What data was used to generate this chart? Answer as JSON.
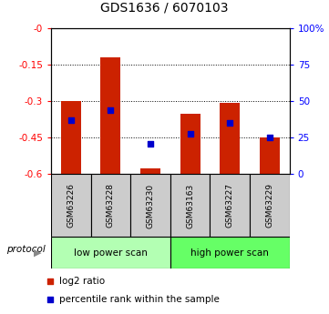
{
  "title": "GDS1636 / 6070103",
  "samples": [
    "GSM63226",
    "GSM63228",
    "GSM63230",
    "GSM63163",
    "GSM63227",
    "GSM63229"
  ],
  "log2_ratio": [
    -0.3,
    -0.12,
    -0.575,
    -0.35,
    -0.305,
    -0.45
  ],
  "percentile_rank": [
    37,
    44,
    21,
    28,
    35,
    25
  ],
  "bar_color": "#cc2200",
  "dot_color": "#0000cc",
  "ylim_left": [
    -0.6,
    0.0
  ],
  "ylim_right": [
    0,
    100
  ],
  "yticks_left": [
    0.0,
    -0.15,
    -0.3,
    -0.45,
    -0.6
  ],
  "yticks_right": [
    100,
    75,
    50,
    25,
    0
  ],
  "ytick_labels_left": [
    "-0",
    "-0.15",
    "-0.3",
    "-0.45",
    "-0.6"
  ],
  "ytick_labels_right": [
    "100%",
    "75",
    "50",
    "25",
    "0"
  ],
  "bar_width": 0.5,
  "sample_box_color": "#cccccc",
  "low_power_color": "#b3ffb3",
  "high_power_color": "#66ff66",
  "legend_log2_label": "log2 ratio",
  "legend_pct_label": "percentile rank within the sample",
  "protocol_label": "protocol"
}
